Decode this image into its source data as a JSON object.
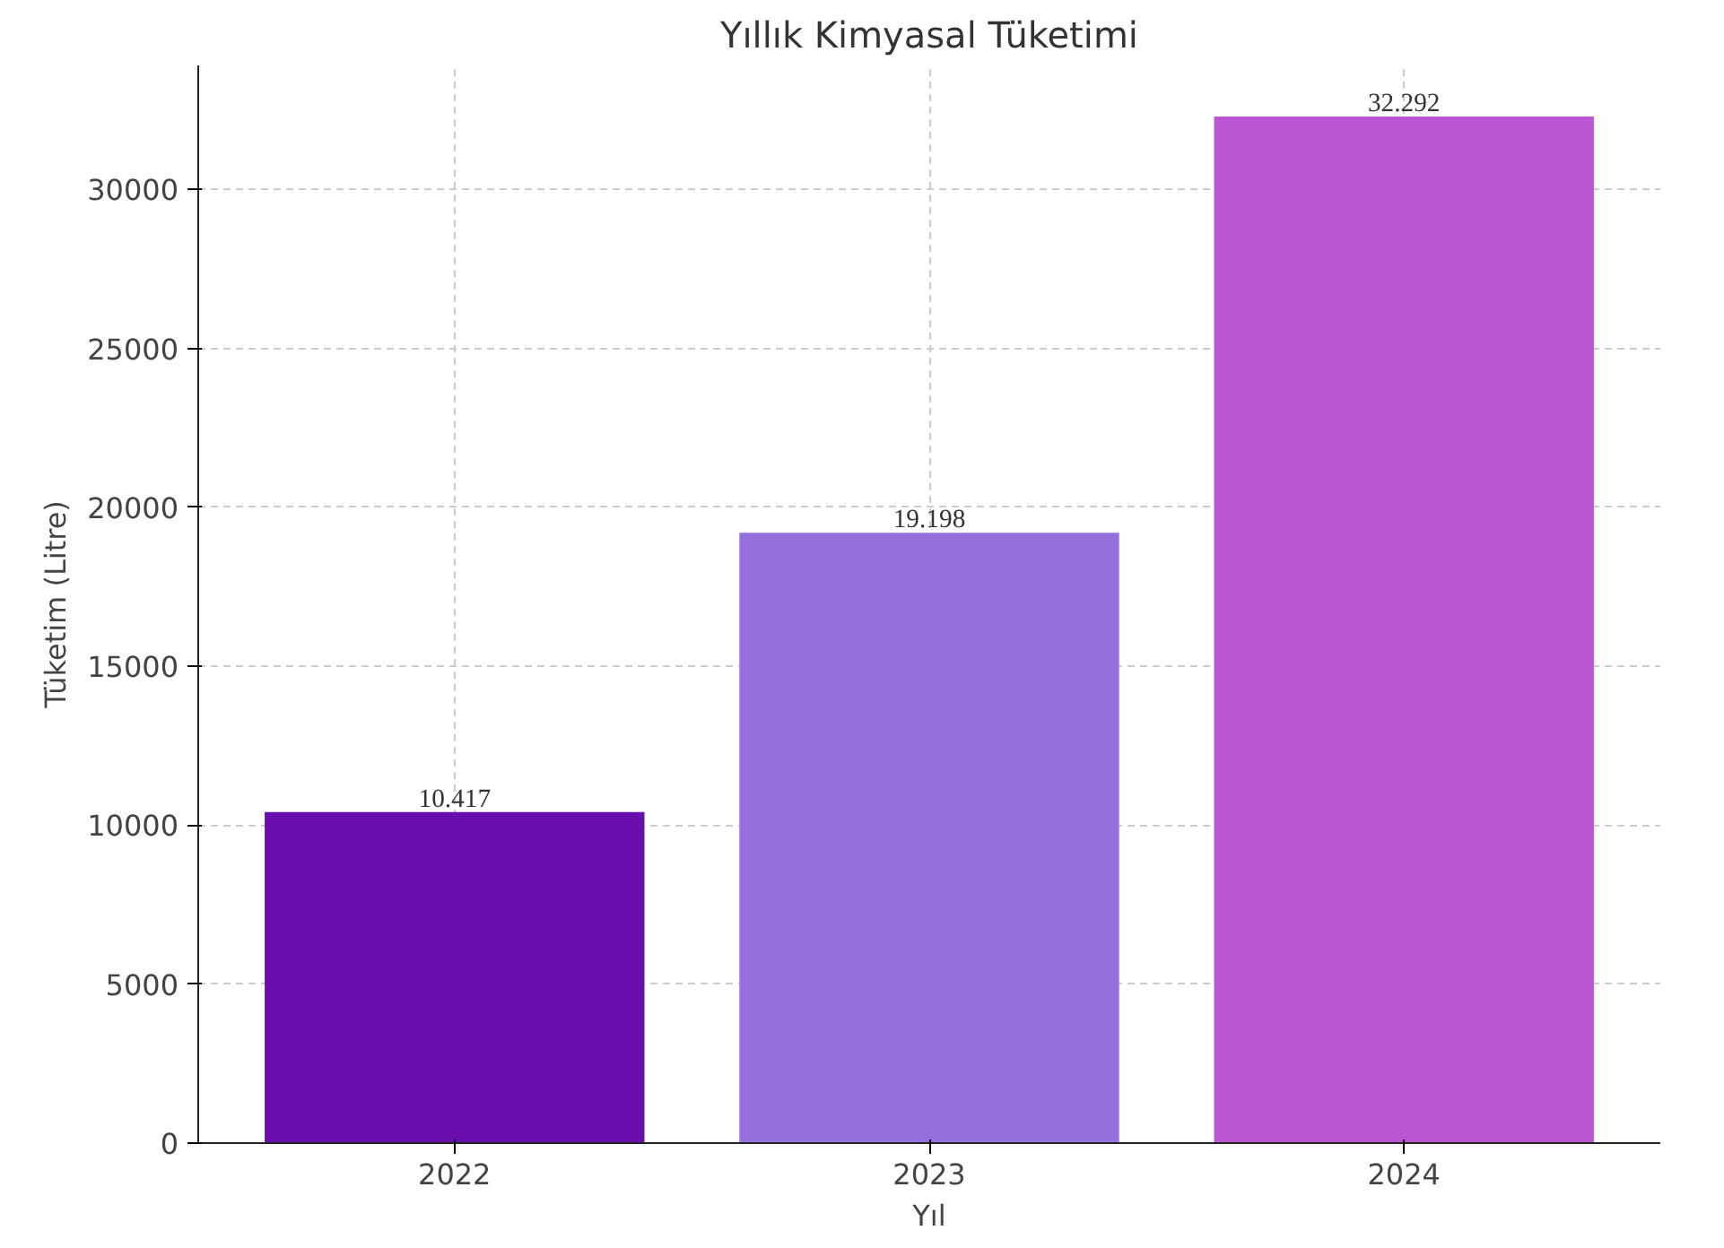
{
  "chart_data": {
    "type": "bar",
    "title": "Yıllık Kimyasal Tüketimi",
    "xlabel": "Yıl",
    "ylabel": "Tüketim (Litre)",
    "categories": [
      "2022",
      "2023",
      "2024"
    ],
    "values": [
      10417,
      19198,
      32292
    ],
    "colors": [
      "#6a0dad",
      "#9370db",
      "#ba55d3"
    ],
    "value_labels": [
      "10.417",
      "19.198",
      "32.292"
    ],
    "ylim": [
      0,
      33900
    ],
    "yticks": [
      0,
      5000,
      10000,
      15000,
      20000,
      25000,
      30000
    ],
    "grid": true
  }
}
